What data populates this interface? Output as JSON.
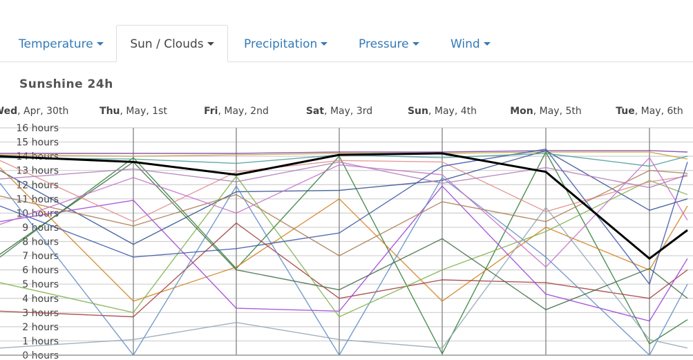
{
  "tabs": [
    {
      "label": "Temperature",
      "caret": true,
      "active": false
    },
    {
      "label": "Sun / Clouds",
      "caret": true,
      "active": true
    },
    {
      "label": "Precipitation",
      "caret": true,
      "active": false
    },
    {
      "label": "Pressure",
      "caret": true,
      "active": false
    },
    {
      "label": "Wind",
      "caret": true,
      "active": false
    }
  ],
  "chart_data": {
    "type": "line",
    "title": "Sunshine 24h",
    "xlabel": "",
    "ylabel": "",
    "ylim": [
      0,
      16
    ],
    "y_unit": "hours",
    "yticks": [
      0,
      1,
      2,
      3,
      4,
      5,
      6,
      7,
      8,
      9,
      10,
      11,
      12,
      13,
      14,
      15,
      16
    ],
    "ytick_labels": [
      "0 hours",
      "1 hours",
      "2 hours",
      "3 hours",
      "4 hours",
      "5 hours",
      "6 hours",
      "7 hours",
      "8 hours",
      "9 hours",
      "10 hours",
      "11 hours",
      "12 hours",
      "13 hours",
      "14 hours",
      "15 hours",
      "16 hours"
    ],
    "x_labels": [
      {
        "dow": "Wed",
        "rest": ", Apr, 30th"
      },
      {
        "dow": "Thu",
        "rest": ", May, 1st"
      },
      {
        "dow": "Fri",
        "rest": ", May, 2nd"
      },
      {
        "dow": "Sat",
        "rest": ", May, 3rd"
      },
      {
        "dow": "Sun",
        "rest": ", May, 4th"
      },
      {
        "dow": "Mon",
        "rest": ", May, 5th"
      },
      {
        "dow": "Tue",
        "rest": ", May, 6th"
      }
    ],
    "grid": true,
    "highlight_color": "#000000",
    "series": [
      {
        "color": "#000000",
        "highlight": true,
        "values": [
          14.0,
          13.6,
          12.7,
          14.1,
          14.2,
          12.9,
          6.8,
          8.8
        ]
      },
      {
        "color": "#7b3fa0",
        "values": [
          14.2,
          14.2,
          14.2,
          14.3,
          14.3,
          14.4,
          14.4,
          14.3
        ]
      },
      {
        "color": "#c9a23a",
        "values": [
          14.1,
          14.0,
          14.1,
          14.2,
          14.2,
          14.3,
          14.3,
          13.8
        ]
      },
      {
        "color": "#2f4f8f",
        "values": [
          13.0,
          7.8,
          11.5,
          11.6,
          12.3,
          14.4,
          10.2,
          11.0
        ]
      },
      {
        "color": "#2e7d32",
        "values": [
          6.9,
          13.9,
          6.1,
          14.0,
          0.1,
          14.3,
          0.8,
          2.5
        ]
      },
      {
        "color": "#d47f1b",
        "values": [
          13.2,
          3.8,
          6.2,
          11.0,
          3.8,
          9.0,
          6.0,
          10.5
        ]
      },
      {
        "color": "#a33a3a",
        "values": [
          3.1,
          2.7,
          9.3,
          4.0,
          5.3,
          5.1,
          4.0,
          6.0
        ]
      },
      {
        "color": "#9c3fd6",
        "values": [
          9.4,
          10.9,
          3.3,
          3.1,
          11.9,
          4.3,
          2.4,
          6.8
        ]
      },
      {
        "color": "#5d8ac4",
        "values": [
          12.1,
          0.0,
          11.9,
          0.0,
          12.5,
          6.9,
          0.0,
          5.0
        ]
      },
      {
        "color": "#7fb04a",
        "values": [
          5.1,
          3.0,
          12.6,
          2.7,
          6.0,
          8.7,
          12.3,
          11.3
        ]
      },
      {
        "color": "#8fa3b3",
        "values": [
          0.5,
          1.1,
          2.3,
          1.1,
          0.5,
          10.4,
          1.1,
          0.5
        ]
      },
      {
        "color": "#3f6b44",
        "values": [
          7.1,
          13.6,
          6.0,
          4.6,
          8.2,
          3.2,
          6.1,
          4.0
        ]
      },
      {
        "color": "#e08a8a",
        "values": [
          13.7,
          9.4,
          12.9,
          13.7,
          13.6,
          10.1,
          12.2,
          12.6
        ]
      },
      {
        "color": "#b07ab8",
        "values": [
          12.4,
          13.1,
          12.2,
          13.6,
          12.1,
          13.2,
          11.8,
          12.7
        ]
      },
      {
        "color": "#3a56a8",
        "values": [
          10.5,
          6.9,
          7.5,
          8.6,
          13.3,
          14.5,
          5.0,
          13.6
        ]
      },
      {
        "color": "#a97b4f",
        "values": [
          11.2,
          9.1,
          11.3,
          7.0,
          10.8,
          9.4,
          13.0,
          12.8
        ]
      },
      {
        "color": "#4a9a9a",
        "values": [
          13.9,
          13.8,
          13.5,
          14.1,
          13.9,
          14.2,
          13.3,
          14.0
        ]
      },
      {
        "color": "#c46fc9",
        "values": [
          9.2,
          12.5,
          10.0,
          13.4,
          12.7,
          6.2,
          13.9,
          9.5
        ]
      }
    ]
  }
}
